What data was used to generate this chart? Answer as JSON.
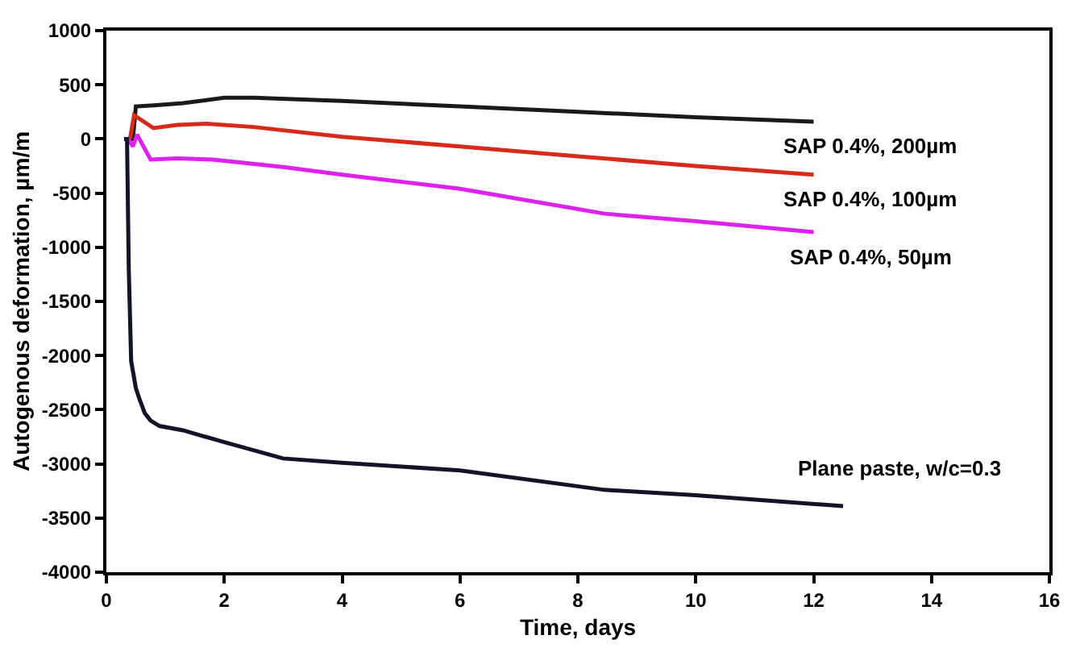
{
  "chart_data": {
    "type": "line",
    "xlabel": "Time, days",
    "ylabel": "Autogenous deformation, µm/m",
    "xlim": [
      0,
      16
    ],
    "xticks": [
      0,
      2,
      4,
      6,
      8,
      10,
      12,
      14,
      16
    ],
    "ylim": [
      -4000,
      1000
    ],
    "yticks": [
      -4000,
      -3500,
      -3000,
      -2500,
      -2000,
      -1500,
      -1000,
      -500,
      0,
      500,
      1000
    ],
    "legend": false,
    "marker": "none",
    "line_style": "solid",
    "series": [
      {
        "name": "SAP 0.4%, 200µm",
        "color": "#1a1a1a",
        "x": [
          0.3,
          0.45,
          0.5,
          0.8,
          1.3,
          2.0,
          2.5,
          4,
          6,
          8,
          10,
          12
        ],
        "values": [
          0,
          0,
          300,
          310,
          330,
          380,
          380,
          350,
          300,
          250,
          200,
          160
        ]
      },
      {
        "name": "SAP 0.4%, 100µm",
        "color": "#d62a1a",
        "x": [
          0.4,
          0.47,
          0.8,
          1.2,
          1.7,
          2.5,
          4,
          6,
          8,
          10,
          12
        ],
        "values": [
          0,
          220,
          100,
          130,
          140,
          110,
          20,
          -70,
          -160,
          -250,
          -330
        ]
      },
      {
        "name": "SAP 0.4%, 50µm",
        "color": "#dd22ee",
        "x": [
          0.37,
          0.45,
          0.52,
          0.75,
          1.2,
          1.8,
          3,
          4,
          6,
          8.45,
          10,
          12
        ],
        "values": [
          0,
          -70,
          40,
          -190,
          -180,
          -190,
          -260,
          -330,
          -460,
          -690,
          -760,
          -860
        ]
      },
      {
        "name": "Plane paste, w/c=0.3",
        "color": "#141428",
        "x": [
          0.3,
          0.35,
          0.38,
          0.42,
          0.5,
          0.56,
          0.65,
          0.75,
          0.9,
          1.3,
          2.0,
          3.0,
          4.0,
          6.0,
          8.45,
          10,
          12.5
        ],
        "values": [
          0,
          0,
          -1200,
          -2050,
          -2300,
          -2400,
          -2530,
          -2600,
          -2650,
          -2690,
          -2800,
          -2950,
          -2990,
          -3060,
          -3240,
          -3290,
          -3390
        ]
      }
    ]
  }
}
